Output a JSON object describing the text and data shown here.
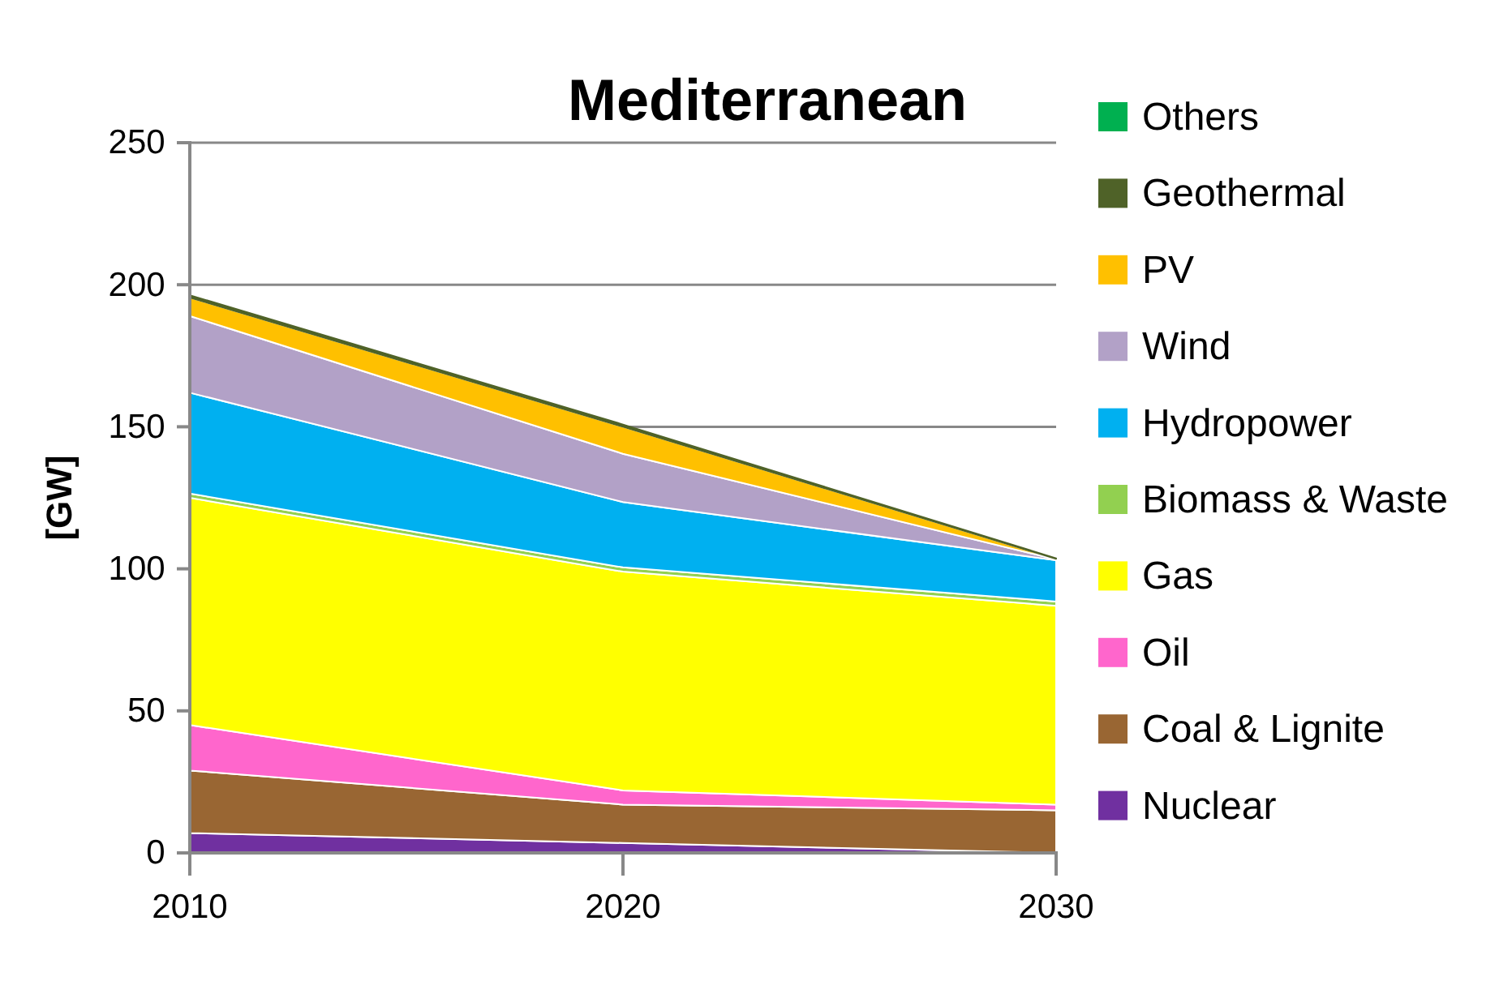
{
  "chart_data": {
    "type": "area",
    "stacked": true,
    "title": "Mediterranean",
    "ylabel": "[GW]",
    "x": [
      2010,
      2020,
      2030
    ],
    "xlim": [
      2010,
      2030
    ],
    "xticks": [
      2010,
      2020,
      2030
    ],
    "ylim": [
      0,
      250
    ],
    "yticks": [
      0,
      50,
      100,
      150,
      200,
      250
    ],
    "grid": "y",
    "legend": "right",
    "series": [
      {
        "name": "Nuclear",
        "color": "#7030a0",
        "values": [
          7,
          3.5,
          0
        ]
      },
      {
        "name": "Coal & Lignite",
        "color": "#996633",
        "values": [
          22,
          13.5,
          15
        ]
      },
      {
        "name": "Oil",
        "color": "#ff66cc",
        "values": [
          16,
          5,
          2
        ]
      },
      {
        "name": "Gas",
        "color": "#ffff00",
        "values": [
          80,
          77,
          70
        ]
      },
      {
        "name": "Biomass & Waste",
        "color": "#92d050",
        "values": [
          1.5,
          1.5,
          1.5
        ]
      },
      {
        "name": "Hydropower",
        "color": "#00b0f0",
        "values": [
          35.5,
          23,
          14.5
        ]
      },
      {
        "name": "Wind",
        "color": "#b2a1c7",
        "values": [
          27,
          17,
          0.3
        ]
      },
      {
        "name": "PV",
        "color": "#ffc000",
        "values": [
          6.5,
          9.5,
          0.2
        ]
      },
      {
        "name": "Geothermal",
        "color": "#4f6228",
        "values": [
          0.8,
          0.8,
          0.2
        ]
      },
      {
        "name": "Others",
        "color": "#00b050",
        "values": [
          null,
          null,
          null
        ]
      }
    ]
  }
}
